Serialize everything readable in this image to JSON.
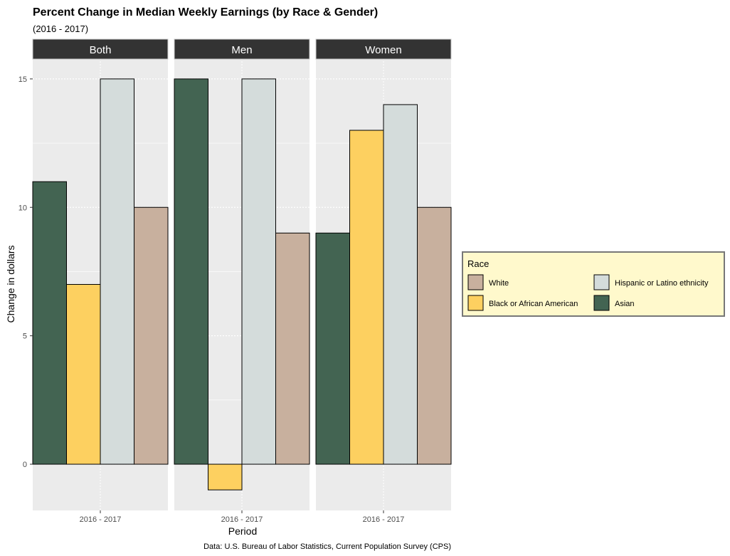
{
  "chart_data": {
    "type": "bar",
    "title": "Percent Change in Median Weekly Earnings (by Race & Gender)",
    "subtitle": "(2016 - 2017)",
    "xlabel": "Period",
    "ylabel": "Change in dollars",
    "caption": "Data: U.S. Bureau of Labor Statistics, Current Population Survey (CPS)",
    "x_tick": "2016 - 2017",
    "ylim": [
      -1.8,
      15.8
    ],
    "yticks": [
      0,
      5,
      10,
      15
    ],
    "grid": true,
    "legend_position": "right",
    "legend": {
      "title": "Race",
      "entries": [
        {
          "name": "White",
          "color": "#c8b09e"
        },
        {
          "name": "Hispanic or Latino ethnicity",
          "color": "#d4dcdb"
        },
        {
          "name": "Black or African American",
          "color": "#fdd060"
        },
        {
          "name": "Asian",
          "color": "#436452"
        }
      ]
    },
    "series_order": [
      "Asian",
      "Black or African American",
      "Hispanic or Latino ethnicity",
      "White"
    ],
    "panels": [
      {
        "facet": "Both",
        "values": {
          "Asian": 11,
          "Black or African American": 7,
          "Hispanic or Latino ethnicity": 15,
          "White": 10
        }
      },
      {
        "facet": "Men",
        "values": {
          "Asian": 15,
          "Black or African American": -1,
          "Hispanic or Latino ethnicity": 15,
          "White": 9
        }
      },
      {
        "facet": "Women",
        "values": {
          "Asian": 9,
          "Black or African American": 13,
          "Hispanic or Latino ethnicity": 14,
          "White": 10
        }
      }
    ]
  }
}
